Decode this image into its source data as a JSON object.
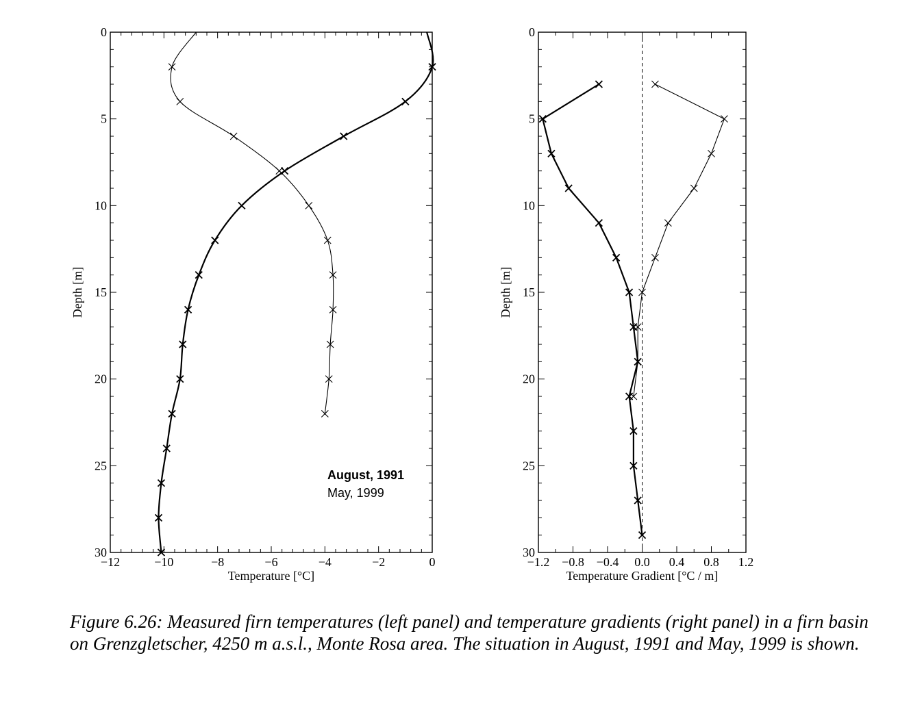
{
  "chart_data": [
    {
      "type": "line",
      "xlabel": "Temperature [°C]",
      "ylabel": "Depth [m]",
      "xlim": [
        -12,
        0
      ],
      "ylim": [
        0,
        30
      ],
      "y_inverted": true,
      "xticks": [
        -12,
        -10,
        -8,
        -6,
        -4,
        -2,
        0
      ],
      "xtick_labels": [
        "−12",
        "−10",
        "−8",
        "−6",
        "−4",
        "−2",
        "0"
      ],
      "yticks": [
        0,
        5,
        10,
        15,
        20,
        25,
        30
      ],
      "ytick_labels": [
        "0",
        "5",
        "10",
        "15",
        "20",
        "25",
        "30"
      ],
      "grid": false,
      "legend_placement": "lower-right",
      "series": [
        {
          "name": "August, 1991",
          "style": "bold",
          "x": [
            0.0,
            -1.0,
            -3.3,
            -5.5,
            -7.1,
            -8.1,
            -8.7,
            -9.1,
            -9.3,
            -9.4,
            -9.7,
            -9.9,
            -10.1,
            -10.2,
            -10.1
          ],
          "y": [
            2,
            4,
            6,
            8,
            10,
            12,
            14,
            16,
            18,
            20,
            22,
            24,
            26,
            28,
            30
          ]
        },
        {
          "name": "May, 1999",
          "style": "thin",
          "x": [
            -9.7,
            -9.4,
            -7.4,
            -5.7,
            -4.6,
            -3.9,
            -3.7,
            -3.7,
            -3.8,
            -3.85,
            -4.0
          ],
          "y": [
            2,
            4,
            6,
            8,
            10,
            12,
            14,
            16,
            18,
            20,
            22
          ]
        }
      ],
      "curve_tops": [
        {
          "series": "August, 1991",
          "x": -0.2,
          "y": 0
        },
        {
          "series": "May, 1999",
          "x": -8.8,
          "y": 0
        }
      ]
    },
    {
      "type": "line",
      "xlabel": "Temperature Gradient [°C / m]",
      "ylabel": "Depth [m]",
      "xlim": [
        -1.2,
        1.2
      ],
      "ylim": [
        0,
        30
      ],
      "y_inverted": true,
      "xticks": [
        -1.2,
        -0.8,
        -0.4,
        0.0,
        0.4,
        0.8,
        1.2
      ],
      "xtick_labels": [
        "−1.2",
        "−0.8",
        "−0.4",
        "0.0",
        "0.4",
        "0.8",
        "1.2"
      ],
      "yticks": [
        0,
        5,
        10,
        15,
        20,
        25,
        30
      ],
      "ytick_labels": [
        "0",
        "5",
        "10",
        "15",
        "20",
        "25",
        "30"
      ],
      "grid": false,
      "reference_line": {
        "x": 0.0,
        "style": "dashed"
      },
      "series": [
        {
          "name": "August, 1991",
          "style": "bold",
          "x": [
            -0.5,
            -1.15,
            -1.05,
            -0.85,
            -0.5,
            -0.3,
            -0.15,
            -0.1,
            -0.05,
            -0.15,
            -0.1,
            -0.1,
            -0.05,
            0.0
          ],
          "y": [
            3,
            5,
            7,
            9,
            11,
            13,
            15,
            17,
            19,
            21,
            23,
            25,
            27,
            29
          ]
        },
        {
          "name": "May, 1999",
          "style": "thin",
          "x": [
            0.15,
            0.95,
            0.8,
            0.6,
            0.3,
            0.15,
            0.0,
            -0.05,
            -0.05,
            -0.1
          ],
          "y": [
            3,
            5,
            7,
            9,
            11,
            13,
            15,
            17,
            19,
            21
          ]
        }
      ]
    }
  ],
  "legend": {
    "entries": [
      "August, 1991",
      "May, 1999"
    ]
  },
  "caption": {
    "text": "Figure 6.26: Measured firn temperatures (left panel) and temperature gradients (right panel) in a firn basin on Grenzgletscher, 4250 m a.s.l., Monte Rosa area. The situation in August, 1991 and May, 1999 is shown."
  }
}
